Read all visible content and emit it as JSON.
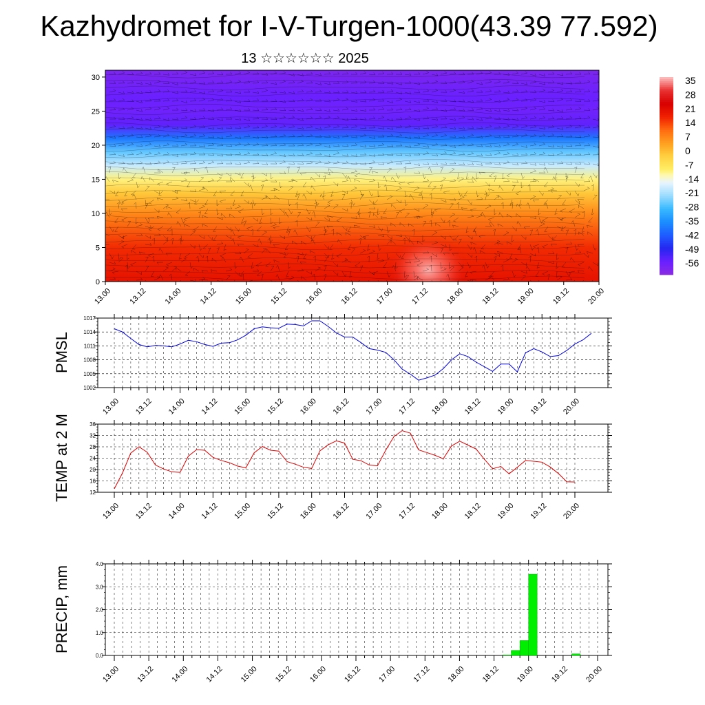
{
  "header": {
    "title": "Kazhydromet for I-V-Turgen-1000(43.39 77.592)",
    "subtitle": "13 ☆☆☆☆☆☆ 2025"
  },
  "time_labels": [
    "13.00",
    "13.12",
    "14.00",
    "14.12",
    "15.00",
    "15.12",
    "16.00",
    "16.12",
    "17.00",
    "17.12",
    "18.00",
    "18.12",
    "19.00",
    "19.12",
    "20.00"
  ],
  "colors": {
    "pmsl_line": "#0000dd",
    "temp_line": "#dd0000",
    "precip_bar": "#00ee00",
    "colorbar_top": "#ffbfbf",
    "colorbar_warm": "#e80000",
    "colorbar_neutral": "#ffee66",
    "colorbar_cold": "#1e3cff",
    "colorbar_bottom": "#8a2be2"
  },
  "chart_data": [
    {
      "type": "heatmap",
      "description_key": "temperature_height_section_with_wind_barbs",
      "x_labels": [
        "13.00",
        "13.12",
        "14.00",
        "14.12",
        "15.00",
        "15.12",
        "16.00",
        "16.12",
        "17.00",
        "17.12",
        "18.00",
        "18.12",
        "19.00",
        "19.12",
        "20.00"
      ],
      "ylim": [
        0,
        31
      ],
      "yticks": [
        0,
        5,
        10,
        15,
        20,
        25,
        30
      ],
      "colorbar": {
        "labels": [
          35,
          28,
          21,
          14,
          7,
          0,
          -7,
          -14,
          -21,
          -28,
          -35,
          -42,
          -49,
          -56
        ],
        "range": [
          -63,
          42
        ]
      },
      "temperature_profile": [
        {
          "y": 0,
          "value": 24
        },
        {
          "y": 5,
          "value": 20
        },
        {
          "y": 10,
          "value": 10
        },
        {
          "y": 13,
          "value": 1
        },
        {
          "y": 15,
          "value": -8
        },
        {
          "y": 17,
          "value": -17
        },
        {
          "y": 19,
          "value": -25
        },
        {
          "y": 21,
          "value": -38
        },
        {
          "y": 23,
          "value": -55
        },
        {
          "y": 25,
          "value": -57
        },
        {
          "y": 27,
          "value": -56
        },
        {
          "y": 31,
          "value": -60
        }
      ]
    },
    {
      "type": "line",
      "ylabel": "PMSL",
      "ylim": [
        1002,
        1017
      ],
      "yticks": [
        1002,
        1005,
        1008,
        1011,
        1014,
        1017
      ],
      "x_labels": [
        "13.00",
        "13.12",
        "14.00",
        "14.12",
        "15.00",
        "15.12",
        "16.00",
        "16.12",
        "17.00",
        "17.12",
        "18.00",
        "18.12",
        "19.00",
        "19.12",
        "20.00"
      ],
      "x_step_hours": 3,
      "series": [
        {
          "values": [
            1014.7,
            1014.0,
            1012.6,
            1011.3,
            1010.8,
            1011.1,
            1011.0,
            1010.8,
            1011.4,
            1012.2,
            1011.9,
            1011.3,
            1010.9,
            1011.6,
            1011.7,
            1012.3,
            1013.3,
            1014.7,
            1015.1,
            1014.9,
            1014.8,
            1015.7,
            1015.6,
            1015.3,
            1016.4,
            1016.4,
            1015.2,
            1013.8,
            1012.9,
            1012.9,
            1011.7,
            1010.4,
            1010.1,
            1009.6,
            1008.0,
            1006.0,
            1004.9,
            1003.6,
            1004.1,
            1004.7,
            1006.1,
            1008.0,
            1009.3,
            1008.7,
            1007.5,
            1006.5,
            1005.5,
            1007.1,
            1007.1,
            1005.4,
            1009.5,
            1010.4,
            1009.7,
            1008.7,
            1008.9,
            1010.0,
            1011.4,
            1012.3,
            1013.7
          ]
        }
      ]
    },
    {
      "type": "line",
      "ylabel": "TEMP at 2 M",
      "ylim": [
        12,
        36
      ],
      "yticks": [
        12,
        16,
        20,
        24,
        28,
        32,
        36
      ],
      "x_labels": [
        "13.00",
        "13.12",
        "14.00",
        "14.12",
        "15.00",
        "15.12",
        "16.00",
        "16.12",
        "17.00",
        "17.12",
        "18.00",
        "18.12",
        "19.00",
        "19.12",
        "20.00"
      ],
      "x_step_hours": 3,
      "series": [
        {
          "values": [
            13.2,
            18.8,
            25.8,
            28.0,
            26.1,
            21.6,
            20.2,
            19.2,
            19.0,
            24.7,
            27.0,
            26.8,
            24.3,
            23.2,
            22.4,
            21.2,
            20.6,
            25.9,
            28.1,
            26.8,
            26.5,
            22.8,
            21.9,
            20.8,
            20.4,
            26.6,
            28.7,
            30.1,
            29.3,
            23.6,
            23.1,
            21.6,
            21.3,
            26.8,
            31.6,
            33.7,
            32.8,
            26.9,
            26.0,
            25.0,
            23.8,
            28.3,
            30.0,
            28.6,
            27.2,
            23.6,
            20.3,
            21.1,
            18.5,
            20.8,
            23.2,
            22.9,
            22.6,
            20.9,
            18.6,
            15.7,
            15.6
          ]
        }
      ]
    },
    {
      "type": "bar",
      "ylabel": "PRECIP, mm",
      "ylim": [
        0,
        4.0
      ],
      "yticks": [
        "0.0",
        "1.0",
        "2.0",
        "3.0",
        "4.0"
      ],
      "x_labels": [
        "13.00",
        "13.12",
        "14.00",
        "14.12",
        "15.00",
        "15.12",
        "16.00",
        "16.12",
        "17.00",
        "17.12",
        "18.00",
        "18.12",
        "19.00",
        "19.12",
        "20.00"
      ],
      "x_step_hours": 3,
      "bars": [
        {
          "hour": 138,
          "value": 0.02
        },
        {
          "hour": 141,
          "value": 0.22
        },
        {
          "hour": 144,
          "value": 0.65
        },
        {
          "hour": 147,
          "value": 3.55
        },
        {
          "hour": 162,
          "value": 0.07
        }
      ]
    }
  ]
}
